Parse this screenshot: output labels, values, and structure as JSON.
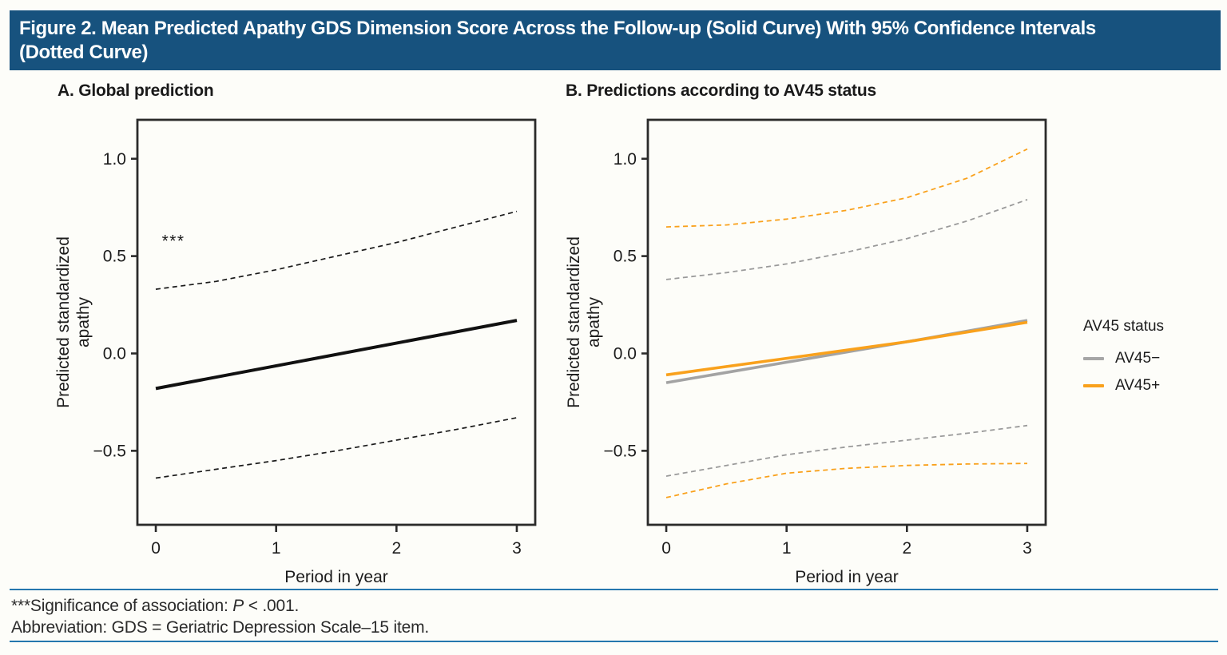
{
  "header": {
    "title_line1": "Figure 2. Mean Predicted Apathy GDS Dimension Score Across the Follow-up (Solid Curve) With 95% Confidence Intervals",
    "title_line2": "(Dotted Curve)"
  },
  "legend": {
    "title": "AV45 status",
    "items": [
      {
        "label": "AV45−",
        "color": "#A6A6A6"
      },
      {
        "label": "AV45+",
        "color": "#F9A11C"
      }
    ]
  },
  "footer": {
    "sig_prefix": "***Significance of association: ",
    "sig_italic": "P",
    "sig_suffix": " < .001.",
    "abbreviation": "Abbreviation: GDS = Geriatric Depression Scale–15 item."
  },
  "colors": {
    "header_bg": "#17527E",
    "rule_blue": "#2577AE",
    "black": "#1B1B1B",
    "gray": "#A3A3A3",
    "orange": "#F9A11C"
  },
  "chart_data": [
    {
      "name": "global-prediction",
      "type": "line",
      "title": "A. Global prediction",
      "xlabel": "Period in year",
      "ylabel": "Predicted standardized apathy",
      "ylabel_lines": [
        "Predicted standardized",
        "apathy"
      ],
      "xlim": [
        -0.153,
        3.153
      ],
      "ylim": [
        -0.88,
        1.2
      ],
      "xticks": [
        0,
        1,
        2,
        3
      ],
      "xtick_labels": [
        "0",
        "1",
        "2",
        "3"
      ],
      "yticks": [
        1.0,
        0.5,
        0.0,
        -0.5
      ],
      "ytick_labels": [
        "1.0",
        "0.5",
        "0.0",
        "−0.5"
      ],
      "grid": false,
      "annotations": [
        {
          "text": "***",
          "x": 0.05,
          "y": 0.55
        }
      ],
      "series": [
        {
          "name": "ci-upper",
          "label": "95% CI upper (dotted)",
          "color": "#1B1B1B",
          "width": 1.7,
          "dashed": true,
          "x": [
            0,
            0.5,
            1,
            1.5,
            2,
            2.5,
            3
          ],
          "y": [
            0.33,
            0.37,
            0.43,
            0.5,
            0.57,
            0.65,
            0.73
          ]
        },
        {
          "name": "mean",
          "label": "Mean prediction (solid)",
          "color": "#111111",
          "width": 4,
          "dashed": false,
          "x": [
            0,
            3
          ],
          "y": [
            -0.18,
            0.17
          ]
        },
        {
          "name": "ci-lower",
          "label": "95% CI lower (dotted)",
          "color": "#1B1B1B",
          "width": 1.7,
          "dashed": true,
          "x": [
            0,
            0.5,
            1,
            1.5,
            2,
            2.5,
            3
          ],
          "y": [
            -0.64,
            -0.595,
            -0.55,
            -0.5,
            -0.445,
            -0.39,
            -0.33
          ]
        }
      ]
    },
    {
      "name": "av45-predictions",
      "type": "line",
      "title": "B. Predictions according to AV45 status",
      "xlabel": "Period in year",
      "ylabel": "Predicted standardized apathy",
      "ylabel_lines": [
        "Predicted standardized",
        "apathy"
      ],
      "xlim": [
        -0.153,
        3.153
      ],
      "ylim": [
        -0.88,
        1.2
      ],
      "xticks": [
        0,
        1,
        2,
        3
      ],
      "xtick_labels": [
        "0",
        "1",
        "2",
        "3"
      ],
      "yticks": [
        1.0,
        0.5,
        0.0,
        -0.5
      ],
      "ytick_labels": [
        "1.0",
        "0.5",
        "0.0",
        "−0.5"
      ],
      "grid": false,
      "annotations": [],
      "series": [
        {
          "name": "av45pos-ci-upper",
          "label": "AV45+ 95% CI upper (dotted)",
          "color": "#F9A11C",
          "width": 1.8,
          "dashed": true,
          "x": [
            0,
            0.5,
            1,
            1.5,
            2,
            2.5,
            3
          ],
          "y": [
            0.65,
            0.66,
            0.69,
            0.735,
            0.8,
            0.9,
            1.05
          ]
        },
        {
          "name": "av45neg-ci-upper",
          "label": "AV45− 95% CI upper (dotted)",
          "color": "#9A9A9A",
          "width": 1.8,
          "dashed": true,
          "x": [
            0,
            0.5,
            1,
            1.5,
            2,
            2.5,
            3
          ],
          "y": [
            0.38,
            0.415,
            0.46,
            0.52,
            0.59,
            0.68,
            0.79
          ]
        },
        {
          "name": "av45neg-mean",
          "label": "AV45− mean (solid)",
          "color": "#A3A3A3",
          "width": 3.6,
          "dashed": false,
          "x": [
            0,
            1,
            2,
            3
          ],
          "y": [
            -0.15,
            -0.045,
            0.06,
            0.17
          ]
        },
        {
          "name": "av45pos-mean",
          "label": "AV45+ mean (solid)",
          "color": "#F9A11C",
          "width": 3.6,
          "dashed": false,
          "x": [
            0,
            1,
            2,
            3
          ],
          "y": [
            -0.11,
            -0.025,
            0.06,
            0.16
          ]
        },
        {
          "name": "av45neg-ci-lower",
          "label": "AV45− 95% CI lower (dotted)",
          "color": "#9A9A9A",
          "width": 1.8,
          "dashed": true,
          "x": [
            0,
            0.5,
            1,
            1.5,
            2,
            2.5,
            3
          ],
          "y": [
            -0.63,
            -0.575,
            -0.52,
            -0.48,
            -0.445,
            -0.41,
            -0.37
          ]
        },
        {
          "name": "av45pos-ci-lower",
          "label": "AV45+ 95% CI lower (dotted)",
          "color": "#F9A11C",
          "width": 1.8,
          "dashed": true,
          "x": [
            0,
            0.5,
            1,
            1.5,
            2,
            2.5,
            3
          ],
          "y": [
            -0.74,
            -0.67,
            -0.615,
            -0.59,
            -0.575,
            -0.568,
            -0.565
          ]
        }
      ]
    }
  ]
}
